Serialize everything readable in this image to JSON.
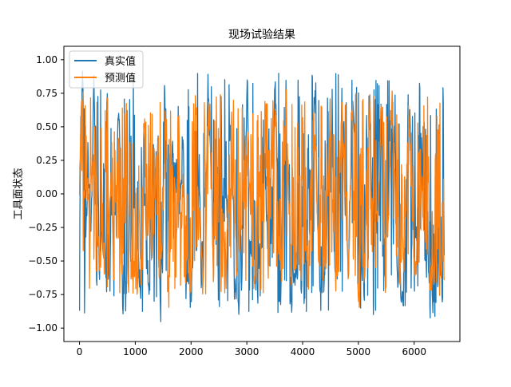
{
  "chart_data": {
    "type": "line",
    "title": "现场试验结果",
    "xlabel": "",
    "ylabel": "工具面状态",
    "xlim": [
      -280,
      6820
    ],
    "ylim": [
      -1.1,
      1.1
    ],
    "xticks": [
      0,
      1000,
      2000,
      3000,
      4000,
      5000,
      6000
    ],
    "yticks": [
      1.0,
      0.75,
      0.5,
      0.25,
      0.0,
      -0.25,
      -0.5,
      -0.75,
      -1.0
    ],
    "ytick_labels": [
      "1.00",
      "0.75",
      "0.50",
      "0.25",
      "0.00",
      "−0.25",
      "−0.50",
      "−0.75",
      "−1.00"
    ],
    "legend_position": "upper-left",
    "n_points": 6540,
    "series": [
      {
        "name": "真实值",
        "color": "#1f77b4",
        "profile": [
          [
            0,
            0.55
          ],
          [
            50,
            0.85
          ],
          [
            100,
            -0.2
          ],
          [
            150,
            0.05
          ],
          [
            200,
            -0.3
          ],
          [
            260,
            0.9
          ],
          [
            300,
            -0.95
          ],
          [
            350,
            -0.5
          ],
          [
            420,
            -0.4
          ],
          [
            500,
            -0.7
          ],
          [
            560,
            0.2
          ],
          [
            620,
            -0.95
          ],
          [
            700,
            0.95
          ],
          [
            760,
            -0.9
          ],
          [
            850,
            -0.85
          ],
          [
            950,
            -0.55
          ],
          [
            1000,
            -0.45
          ],
          [
            1100,
            -0.6
          ],
          [
            1150,
            0.85
          ],
          [
            1200,
            -0.7
          ],
          [
            1300,
            -0.4
          ],
          [
            1400,
            0.6
          ],
          [
            1450,
            -0.95
          ],
          [
            1550,
            0.7
          ],
          [
            1600,
            -0.95
          ],
          [
            1650,
            0.4
          ],
          [
            1700,
            0.2
          ],
          [
            1780,
            -0.2
          ],
          [
            1850,
            0.3
          ],
          [
            1900,
            -0.55
          ],
          [
            2000,
            -0.85
          ],
          [
            2100,
            0.6
          ],
          [
            2200,
            -0.95
          ],
          [
            2300,
            0.95
          ],
          [
            2400,
            -0.9
          ],
          [
            2500,
            0.9
          ],
          [
            2600,
            -0.85
          ],
          [
            2700,
            0.55
          ],
          [
            2800,
            -0.8
          ],
          [
            2900,
            -0.55
          ],
          [
            3000,
            0.9
          ],
          [
            3100,
            -0.9
          ],
          [
            3200,
            -0.7
          ],
          [
            3300,
            0.7
          ],
          [
            3400,
            -0.95
          ],
          [
            3500,
            0.95
          ],
          [
            3600,
            -0.95
          ],
          [
            3700,
            0.95
          ],
          [
            3800,
            -0.9
          ],
          [
            3900,
            -0.55
          ],
          [
            4000,
            -0.65
          ],
          [
            4100,
            -0.6
          ],
          [
            4200,
            0.95
          ],
          [
            4300,
            -0.9
          ],
          [
            4400,
            -0.75
          ],
          [
            4500,
            0.7
          ],
          [
            4600,
            -0.95
          ],
          [
            4700,
            0.95
          ],
          [
            4800,
            -0.85
          ],
          [
            4900,
            0.9
          ],
          [
            5000,
            -0.95
          ],
          [
            5100,
            -0.7
          ],
          [
            5200,
            0.95
          ],
          [
            5300,
            -0.9
          ],
          [
            5400,
            0.9
          ],
          [
            5500,
            -0.95
          ],
          [
            5600,
            0.95
          ],
          [
            5700,
            -0.85
          ],
          [
            5800,
            -0.75
          ],
          [
            5900,
            0.95
          ],
          [
            6000,
            -0.9
          ],
          [
            6100,
            0.6
          ],
          [
            6200,
            -0.8
          ],
          [
            6300,
            -0.75
          ],
          [
            6400,
            -0.9
          ],
          [
            6500,
            -0.85
          ]
        ]
      },
      {
        "name": "预测值",
        "color": "#ff7f0e",
        "profile": [
          [
            0,
            0.5
          ],
          [
            50,
            0.75
          ],
          [
            100,
            -0.15
          ],
          [
            150,
            0.02
          ],
          [
            200,
            -0.25
          ],
          [
            260,
            0.75
          ],
          [
            300,
            -0.8
          ],
          [
            350,
            -0.45
          ],
          [
            420,
            -0.35
          ],
          [
            500,
            -0.6
          ],
          [
            560,
            0.15
          ],
          [
            620,
            -0.8
          ],
          [
            700,
            0.7
          ],
          [
            760,
            -0.75
          ],
          [
            850,
            -0.7
          ],
          [
            950,
            -0.5
          ],
          [
            1000,
            -0.4
          ],
          [
            1100,
            -0.5
          ],
          [
            1150,
            0.7
          ],
          [
            1200,
            -0.6
          ],
          [
            1300,
            -0.35
          ],
          [
            1400,
            0.5
          ],
          [
            1450,
            -0.8
          ],
          [
            1550,
            0.6
          ],
          [
            1600,
            -0.8
          ],
          [
            1650,
            0.35
          ],
          [
            1700,
            0.15
          ],
          [
            1780,
            -0.15
          ],
          [
            1850,
            0.25
          ],
          [
            1900,
            -0.5
          ],
          [
            2000,
            -0.75
          ],
          [
            2100,
            0.5
          ],
          [
            2200,
            -0.8
          ],
          [
            2300,
            0.8
          ],
          [
            2400,
            -0.75
          ],
          [
            2500,
            0.75
          ],
          [
            2600,
            -0.75
          ],
          [
            2700,
            0.45
          ],
          [
            2800,
            -0.7
          ],
          [
            2900,
            -0.5
          ],
          [
            3000,
            0.75
          ],
          [
            3100,
            -0.75
          ],
          [
            3200,
            -0.6
          ],
          [
            3300,
            0.6
          ],
          [
            3400,
            -0.8
          ],
          [
            3500,
            0.75
          ],
          [
            3600,
            -0.8
          ],
          [
            3700,
            0.75
          ],
          [
            3800,
            -0.75
          ],
          [
            3900,
            -0.5
          ],
          [
            4000,
            -0.6
          ],
          [
            4100,
            -0.55
          ],
          [
            4200,
            0.75
          ],
          [
            4300,
            -0.75
          ],
          [
            4400,
            -0.65
          ],
          [
            4500,
            0.6
          ],
          [
            4600,
            -0.8
          ],
          [
            4700,
            0.75
          ],
          [
            4800,
            -0.75
          ],
          [
            4900,
            0.75
          ],
          [
            5000,
            -0.8
          ],
          [
            5100,
            -0.6
          ],
          [
            5200,
            0.8
          ],
          [
            5300,
            -0.75
          ],
          [
            5400,
            0.75
          ],
          [
            5500,
            -0.8
          ],
          [
            5600,
            0.75
          ],
          [
            5700,
            -0.75
          ],
          [
            5800,
            -0.65
          ],
          [
            5900,
            0.75
          ],
          [
            6000,
            -0.75
          ],
          [
            6100,
            0.5
          ],
          [
            6200,
            -0.7
          ],
          [
            6300,
            -0.65
          ],
          [
            6400,
            -0.75
          ],
          [
            6500,
            -0.75
          ]
        ]
      }
    ]
  }
}
